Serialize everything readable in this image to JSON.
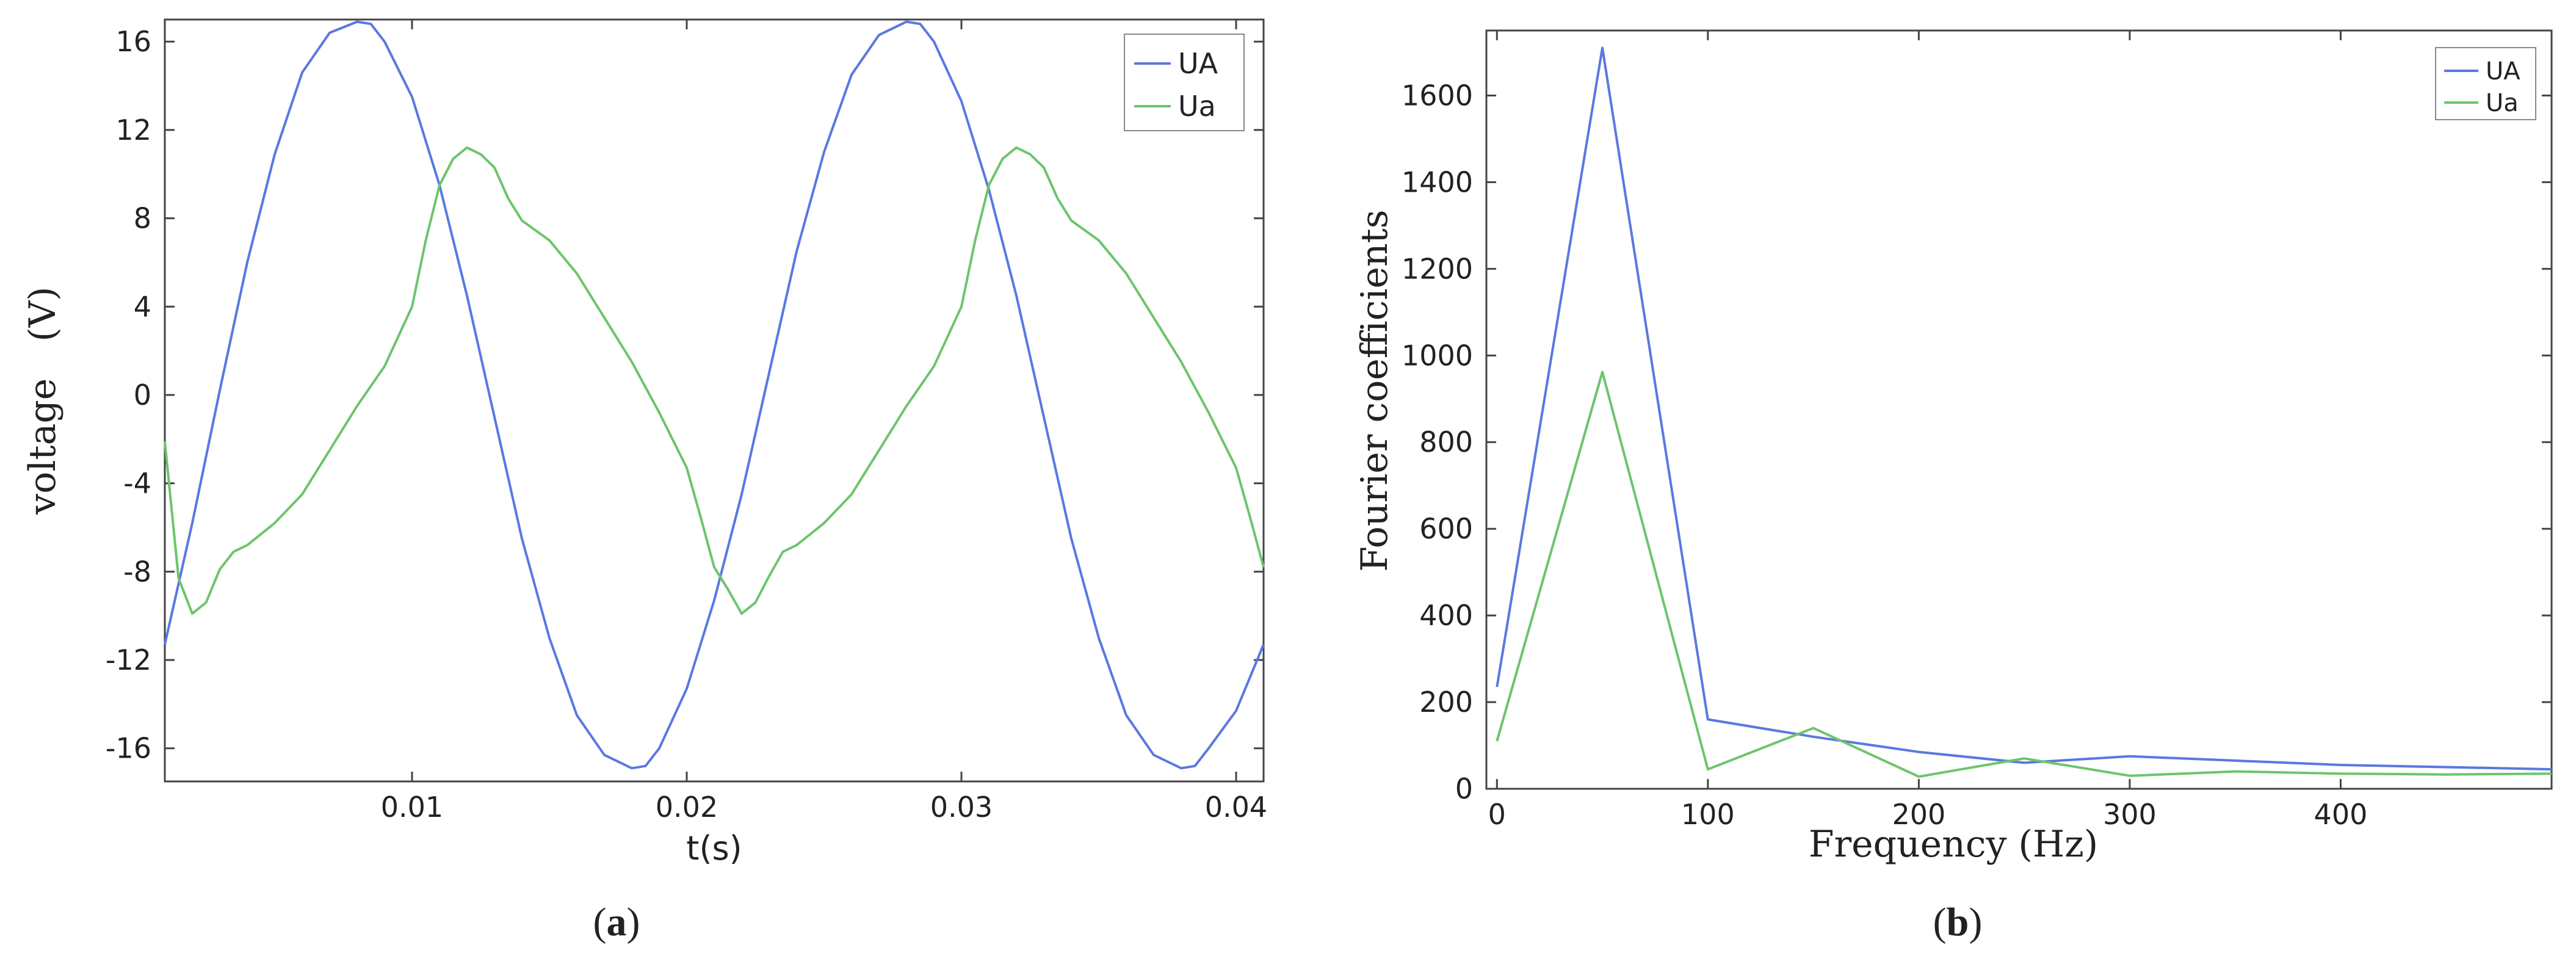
{
  "colors": {
    "UA": "#5a78e0",
    "Ua": "#6cc56c",
    "axis": "#444444"
  },
  "captions": {
    "a": {
      "open": "(",
      "letter": "a",
      "close": ")"
    },
    "b": {
      "open": "(",
      "letter": "b",
      "close": ")"
    }
  },
  "chart_data": [
    {
      "id": "a",
      "type": "line",
      "xlabel": "t(s)",
      "ylabel": "voltage　(V)",
      "xlim": [
        0.001,
        0.041
      ],
      "ylim": [
        -17.5,
        17
      ],
      "xticks": [
        0.01,
        0.02,
        0.03,
        0.04
      ],
      "xtick_labels": [
        "0.01",
        "0.02",
        "0.03",
        "0.04"
      ],
      "yticks": [
        16,
        12,
        8,
        4,
        0,
        -4,
        -8,
        -12,
        -16
      ],
      "ytick_labels": [
        "16",
        "12",
        "8",
        "4",
        "0",
        "-4",
        "-8",
        "-12",
        "-16"
      ],
      "grid": false,
      "legend_position": "top-right",
      "series": [
        {
          "name": "UA",
          "color_key": "UA",
          "x": [
            0.001,
            0.002,
            0.003,
            0.004,
            0.005,
            0.006,
            0.007,
            0.008,
            0.0085,
            0.009,
            0.01,
            0.011,
            0.012,
            0.013,
            0.014,
            0.015,
            0.016,
            0.017,
            0.018,
            0.0185,
            0.019,
            0.02,
            0.021,
            0.022,
            0.023,
            0.024,
            0.025,
            0.026,
            0.027,
            0.028,
            0.0285,
            0.029,
            0.03,
            0.031,
            0.032,
            0.033,
            0.034,
            0.035,
            0.036,
            0.037,
            0.038,
            0.0385,
            0.039,
            0.04,
            0.041
          ],
          "y": [
            -11.3,
            -5.8,
            0.2,
            6.0,
            10.9,
            14.6,
            16.4,
            16.9,
            16.8,
            16.0,
            13.5,
            9.5,
            4.5,
            -1.0,
            -6.5,
            -11.0,
            -14.5,
            -16.3,
            -16.9,
            -16.8,
            -16.0,
            -13.3,
            -9.3,
            -4.5,
            1.0,
            6.5,
            11.0,
            14.5,
            16.3,
            16.9,
            16.8,
            16.0,
            13.3,
            9.3,
            4.5,
            -1.0,
            -6.5,
            -11.0,
            -14.5,
            -16.3,
            -16.9,
            -16.8,
            -16.0,
            -14.3,
            -11.3
          ]
        },
        {
          "name": "Ua",
          "color_key": "Ua",
          "x": [
            0.001,
            0.0015,
            0.002,
            0.0025,
            0.003,
            0.0035,
            0.004,
            0.005,
            0.006,
            0.007,
            0.008,
            0.009,
            0.01,
            0.0105,
            0.011,
            0.0115,
            0.012,
            0.0125,
            0.013,
            0.0135,
            0.014,
            0.015,
            0.016,
            0.017,
            0.018,
            0.019,
            0.02,
            0.0205,
            0.021,
            0.0215,
            0.022,
            0.0225,
            0.023,
            0.0235,
            0.024,
            0.025,
            0.026,
            0.027,
            0.028,
            0.029,
            0.03,
            0.0305,
            0.031,
            0.0315,
            0.032,
            0.0325,
            0.033,
            0.0335,
            0.034,
            0.035,
            0.036,
            0.037,
            0.038,
            0.039,
            0.04,
            0.0405,
            0.041
          ],
          "y": [
            -2.1,
            -8.3,
            -9.9,
            -9.4,
            -7.9,
            -7.1,
            -6.8,
            -5.8,
            -4.5,
            -2.5,
            -0.5,
            1.3,
            4.0,
            7.0,
            9.5,
            10.7,
            11.2,
            10.9,
            10.3,
            8.9,
            7.9,
            7.0,
            5.5,
            3.5,
            1.5,
            -0.8,
            -3.3,
            -5.5,
            -7.8,
            -8.8,
            -9.9,
            -9.4,
            -8.2,
            -7.1,
            -6.8,
            -5.8,
            -4.5,
            -2.5,
            -0.5,
            1.3,
            4.0,
            7.0,
            9.5,
            10.7,
            11.2,
            10.9,
            10.3,
            8.9,
            7.9,
            7.0,
            5.5,
            3.5,
            1.5,
            -0.8,
            -3.3,
            -5.5,
            -7.8
          ]
        }
      ]
    },
    {
      "id": "b",
      "type": "line",
      "xlabel": "Frequency (Hz)",
      "ylabel": "Fourier coefficients",
      "xlim": [
        -5,
        500
      ],
      "ylim": [
        0,
        1750
      ],
      "xticks": [
        0,
        100,
        200,
        300,
        400
      ],
      "xtick_labels": [
        "0",
        "100",
        "200",
        "300",
        "400"
      ],
      "yticks": [
        0,
        200,
        400,
        600,
        800,
        1000,
        1200,
        1400,
        1600
      ],
      "ytick_labels": [
        "0",
        "200",
        "400",
        "600",
        "800",
        "1000",
        "1200",
        "1400",
        "1600"
      ],
      "grid": false,
      "legend_position": "top-right",
      "series": [
        {
          "name": "UA",
          "color_key": "UA",
          "x": [
            0,
            50,
            100,
            150,
            200,
            250,
            300,
            350,
            400,
            450,
            500
          ],
          "y": [
            235,
            1710,
            160,
            120,
            85,
            60,
            75,
            65,
            55,
            50,
            45
          ]
        },
        {
          "name": "Ua",
          "color_key": "Ua",
          "x": [
            0,
            50,
            100,
            150,
            200,
            250,
            300,
            350,
            400,
            450,
            500
          ],
          "y": [
            110,
            962,
            45,
            140,
            28,
            70,
            30,
            40,
            35,
            33,
            35
          ]
        }
      ]
    }
  ]
}
